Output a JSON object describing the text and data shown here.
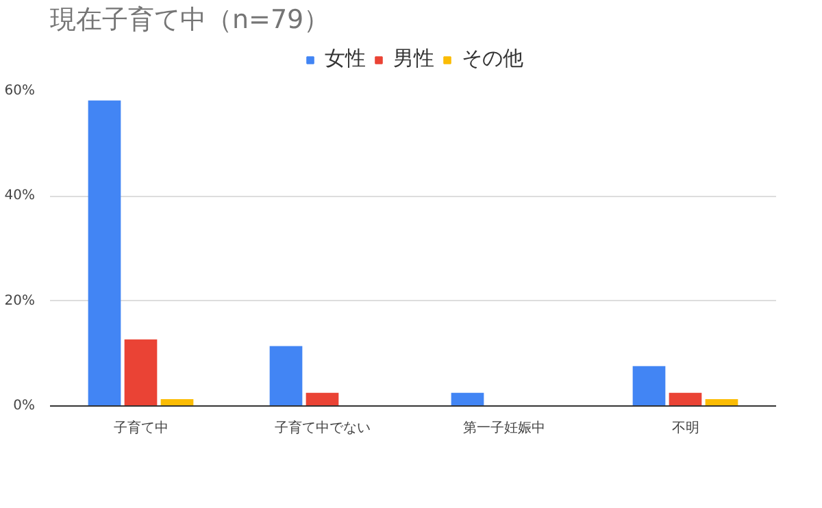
{
  "chart_data": {
    "type": "bar",
    "title": "現在子育て中（n=79）",
    "categories": [
      "子育て中",
      "子育て中でない",
      "第一子妊娠中",
      "不明"
    ],
    "series": [
      {
        "name": "女性",
        "color": "#4285f4",
        "values": [
          58.2,
          11.4,
          2.5,
          7.6
        ]
      },
      {
        "name": "男性",
        "color": "#ea4335",
        "values": [
          12.7,
          2.5,
          0,
          2.5
        ]
      },
      {
        "name": "その他",
        "color": "#fbbc04",
        "values": [
          1.3,
          0,
          0,
          1.3
        ]
      }
    ],
    "ylim": [
      0,
      60
    ],
    "yticks": [
      {
        "value": 0,
        "label": "0%"
      },
      {
        "value": 20,
        "label": "20%"
      },
      {
        "value": 40,
        "label": "40%"
      },
      {
        "value": 60,
        "label": "60%"
      }
    ],
    "grid": "y",
    "legend": "top"
  }
}
